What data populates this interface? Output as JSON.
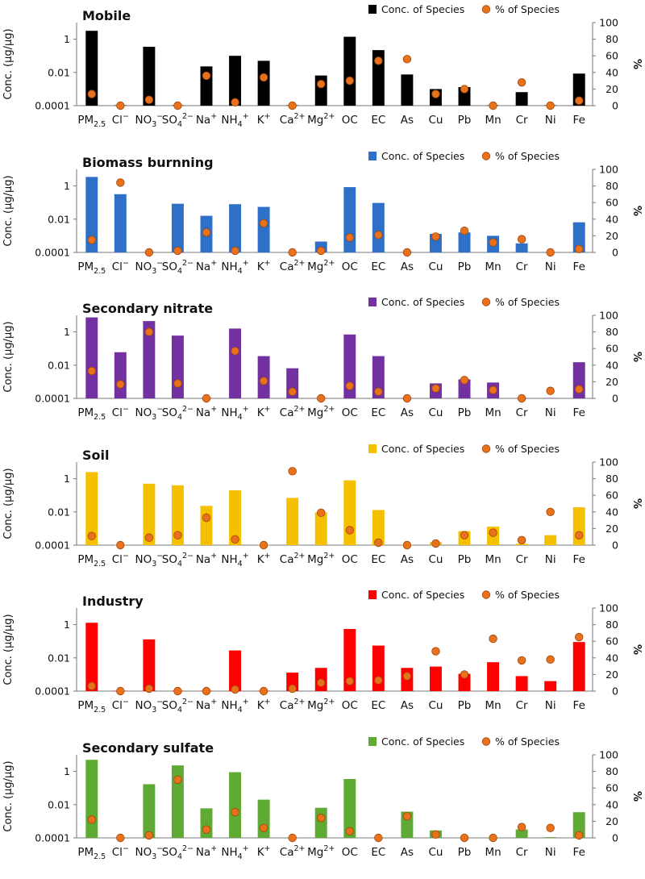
{
  "page": {
    "legend": {
      "bar_label": "Conc. of Species",
      "marker_label": "% of Species"
    },
    "marker_color": "#E8711C"
  },
  "chart_data": [
    {
      "type": "bar",
      "title": "Mobile",
      "color": "#000000",
      "ylabel": "Conc. (μg/μg)",
      "y2label": "%",
      "yscale": "log",
      "ylim": [
        0.0001,
        10
      ],
      "yticks": [
        "0.0001",
        "0.01",
        "1"
      ],
      "y2lim": [
        0,
        100
      ],
      "y2ticks": [
        "0",
        "20",
        "40",
        "60",
        "80",
        "100"
      ],
      "categories": [
        "PM2.5",
        "Cl-",
        "NO3-",
        "SO42-",
        "Na+",
        "NH4+",
        "K+",
        "Ca2+",
        "Mg2+",
        "OC",
        "EC",
        "As",
        "Cu",
        "Pb",
        "Mn",
        "Cr",
        "Ni",
        "Fe"
      ],
      "series": [
        {
          "name": "Conc. of Species",
          "kind": "bar",
          "values": [
            3.2,
            0.0001,
            0.35,
            0.0001,
            0.023,
            0.1,
            0.05,
            0.0001,
            0.0065,
            1.4,
            0.22,
            0.0075,
            0.001,
            0.0013,
            0.0001,
            0.00065,
            0.0001,
            0.0085
          ]
        },
        {
          "name": "% of Species",
          "kind": "marker",
          "values": [
            14,
            0,
            7,
            0,
            36,
            4,
            34,
            0,
            26,
            30,
            54,
            56,
            14,
            20,
            0,
            28,
            0,
            6
          ]
        }
      ]
    },
    {
      "type": "bar",
      "title": "Biomass burnning",
      "color": "#2E6FC8",
      "ylabel": "Conc. (μg/μg)",
      "y2label": "%",
      "yscale": "log",
      "ylim": [
        0.0001,
        10
      ],
      "yticks": [
        "0.0001",
        "0.01",
        "1"
      ],
      "y2lim": [
        0,
        100
      ],
      "y2ticks": [
        "0",
        "20",
        "40",
        "60",
        "80",
        "100"
      ],
      "categories": [
        "PM2.5",
        "Cl-",
        "NO3-",
        "SO42-",
        "Na+",
        "NH4+",
        "K+",
        "Ca2+",
        "Mg2+",
        "OC",
        "EC",
        "As",
        "Cu",
        "Pb",
        "Mn",
        "Cr",
        "Ni",
        "Fe"
      ],
      "series": [
        {
          "name": "Conc. of Species",
          "kind": "bar",
          "values": [
            3.5,
            0.32,
            0.0001,
            0.085,
            0.016,
            0.08,
            0.055,
            0.0001,
            0.00045,
            0.85,
            0.095,
            0.0001,
            0.0013,
            0.0016,
            0.001,
            0.00035,
            0.0001,
            0.0065
          ]
        },
        {
          "name": "% of Species",
          "kind": "marker",
          "values": [
            15,
            84,
            0,
            2,
            24,
            2,
            35,
            0,
            2,
            18,
            21,
            0,
            19,
            26,
            12,
            16,
            0,
            4
          ]
        }
      ]
    },
    {
      "type": "bar",
      "title": "Secondary nitrate",
      "color": "#7330A0",
      "ylabel": "Conc. (μg/μg)",
      "y2label": "%",
      "yscale": "log",
      "ylim": [
        0.0001,
        10
      ],
      "yticks": [
        "0.0001",
        "0.01",
        "1"
      ],
      "y2lim": [
        0,
        100
      ],
      "y2ticks": [
        "0",
        "20",
        "40",
        "60",
        "80",
        "100"
      ],
      "categories": [
        "PM2.5",
        "Cl-",
        "NO3-",
        "SO42-",
        "Na+",
        "NH4+",
        "K+",
        "Ca2+",
        "Mg2+",
        "OC",
        "EC",
        "As",
        "Cu",
        "Pb",
        "Mn",
        "Cr",
        "Ni",
        "Fe"
      ],
      "series": [
        {
          "name": "Conc. of Species",
          "kind": "bar",
          "values": [
            7.5,
            0.06,
            4.5,
            0.6,
            0.0001,
            1.6,
            0.035,
            0.0065,
            0.0001,
            0.7,
            0.035,
            0.0001,
            0.0008,
            0.0014,
            0.0009,
            0.0001,
            0.0001,
            0.015
          ]
        },
        {
          "name": "% of Species",
          "kind": "marker",
          "values": [
            33,
            17,
            80,
            18,
            0,
            57,
            21,
            8,
            0,
            15,
            8,
            0,
            12,
            22,
            10,
            0,
            9,
            11
          ]
        }
      ]
    },
    {
      "type": "bar",
      "title": "Soil",
      "color": "#F5C000",
      "ylabel": "Conc. (μg/μg)",
      "y2label": "%",
      "yscale": "log",
      "ylim": [
        0.0001,
        10
      ],
      "yticks": [
        "0.0001",
        "0.01",
        "1"
      ],
      "y2lim": [
        0,
        100
      ],
      "y2ticks": [
        "0",
        "20",
        "40",
        "60",
        "80",
        "100"
      ],
      "categories": [
        "PM2.5",
        "Cl-",
        "NO3-",
        "SO42-",
        "Na+",
        "NH4+",
        "K+",
        "Ca2+",
        "Mg2+",
        "OC",
        "EC",
        "As",
        "Cu",
        "Pb",
        "Mn",
        "Cr",
        "Ni",
        "Fe"
      ],
      "series": [
        {
          "name": "Conc. of Species",
          "kind": "bar",
          "values": [
            2.5,
            0.0001,
            0.5,
            0.4,
            0.023,
            0.2,
            0.0001,
            0.07,
            0.0095,
            0.8,
            0.013,
            0.0001,
            0.00015,
            0.0007,
            0.0013,
            0.00012,
            0.0004,
            0.019
          ]
        },
        {
          "name": "% of Species",
          "kind": "marker",
          "values": [
            11,
            0,
            9,
            12,
            33,
            7,
            0,
            89,
            39,
            18,
            3,
            0,
            2,
            12,
            15,
            6,
            40,
            12
          ]
        }
      ]
    },
    {
      "type": "bar",
      "title": "Industry",
      "color": "#FF0000",
      "ylabel": "Conc. (μg/μg)",
      "y2label": "%",
      "yscale": "log",
      "ylim": [
        0.0001,
        10
      ],
      "yticks": [
        "0.0001",
        "0.01",
        "1"
      ],
      "y2lim": [
        0,
        100
      ],
      "y2ticks": [
        "0",
        "20",
        "40",
        "60",
        "80",
        "100"
      ],
      "categories": [
        "PM2.5",
        "Cl-",
        "NO3-",
        "SO42-",
        "Na+",
        "NH4+",
        "K+",
        "Ca2+",
        "Mg2+",
        "OC",
        "EC",
        "As",
        "Cu",
        "Pb",
        "Mn",
        "Cr",
        "Ni",
        "Fe"
      ],
      "series": [
        {
          "name": "Conc. of Species",
          "kind": "bar",
          "values": [
            1.3,
            0.0001,
            0.13,
            0.0001,
            0.0001,
            0.028,
            0.0001,
            0.0013,
            0.0025,
            0.55,
            0.055,
            0.0025,
            0.003,
            0.0011,
            0.0055,
            0.0008,
            0.0004,
            0.09
          ]
        },
        {
          "name": "% of Species",
          "kind": "marker",
          "values": [
            6,
            0,
            3,
            0,
            0,
            2,
            0,
            3,
            10,
            12,
            13,
            18,
            48,
            20,
            63,
            37,
            38,
            65
          ]
        }
      ]
    },
    {
      "type": "bar",
      "title": "Secondary sulfate",
      "color": "#5EAA32",
      "ylabel": "Conc. (μg/μg)",
      "y2label": "%",
      "yscale": "log",
      "ylim": [
        0.0001,
        10
      ],
      "yticks": [
        "0.0001",
        "0.01",
        "1"
      ],
      "y2lim": [
        0,
        100
      ],
      "y2ticks": [
        "0",
        "20",
        "40",
        "60",
        "80",
        "100"
      ],
      "categories": [
        "PM2.5",
        "Cl-",
        "NO3-",
        "SO42-",
        "Na+",
        "NH4+",
        "K+",
        "Ca2+",
        "Mg2+",
        "OC",
        "EC",
        "As",
        "Cu",
        "Pb",
        "Mn",
        "Cr",
        "Ni",
        "Fe"
      ],
      "series": [
        {
          "name": "Conc. of Species",
          "kind": "bar",
          "values": [
            5.0,
            0.0001,
            0.17,
            2.3,
            0.006,
            0.9,
            0.02,
            0.0001,
            0.0065,
            0.35,
            0.0001,
            0.0038,
            0.00028,
            0.0001,
            0.0001,
            0.00032,
            0.00011,
            0.0035
          ]
        },
        {
          "name": "% of Species",
          "kind": "marker",
          "values": [
            22,
            0,
            3,
            70,
            10,
            31,
            12,
            0,
            24,
            8,
            0,
            26,
            4,
            0,
            0,
            13,
            12,
            3
          ]
        }
      ]
    }
  ]
}
